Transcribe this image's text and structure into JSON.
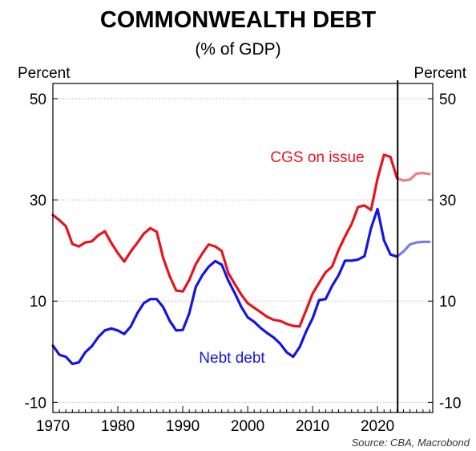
{
  "chart_data": {
    "type": "line",
    "title": "COMMONWEALTH DEBT",
    "subtitle": "(% of GDP)",
    "ylabel_left": "Percent",
    "ylabel_right": "Percent",
    "source": "Source: CBA, Macrobond",
    "xlim": [
      1970,
      2028.5
    ],
    "ylim": [
      -12,
      53
    ],
    "xticks": [
      1970,
      1980,
      1990,
      2000,
      2010,
      2020
    ],
    "xtick_labels": [
      "1970",
      "1980",
      "1990",
      "2000",
      "2010",
      "2020"
    ],
    "yticks": [
      -10,
      10,
      30,
      50
    ],
    "ytick_labels": [
      "-10",
      "10",
      "30",
      "50"
    ],
    "grid": true,
    "forecast_line_x": 2023.1,
    "series": [
      {
        "name": "CGS on issue",
        "color": "#e8141b",
        "forecast_color": "#f07d80",
        "x": [
          1970,
          1971,
          1972,
          1973,
          1974,
          1975,
          1976,
          1977,
          1978,
          1979,
          1980,
          1981,
          1982,
          1983,
          1984,
          1985,
          1986,
          1987,
          1988,
          1989,
          1990,
          1991,
          1992,
          1993,
          1994,
          1995,
          1996,
          1997,
          1998,
          1999,
          2000,
          2001,
          2002,
          2003,
          2004,
          2005,
          2006,
          2007,
          2008,
          2009,
          2010,
          2011,
          2012,
          2013,
          2014,
          2015,
          2016,
          2017,
          2018,
          2019,
          2020,
          2021,
          2022,
          2023
        ],
        "values": [
          27.0,
          26.0,
          24.8,
          21.3,
          20.8,
          21.6,
          21.8,
          23.0,
          23.8,
          21.5,
          19.5,
          17.8,
          19.8,
          21.5,
          23.3,
          24.4,
          23.7,
          18.5,
          14.9,
          12.1,
          11.9,
          14.2,
          17.3,
          19.4,
          21.2,
          20.8,
          19.9,
          15.6,
          13.4,
          11.3,
          9.6,
          8.7,
          7.8,
          6.9,
          6.3,
          6.1,
          5.5,
          5.1,
          5.0,
          8.2,
          11.5,
          13.6,
          15.7,
          16.8,
          20.1,
          22.8,
          25.2,
          28.6,
          28.9,
          28.0,
          34.2,
          38.9,
          38.5,
          34.3
        ],
        "forecast_x": [
          2023,
          2024,
          2025,
          2026,
          2027,
          2028
        ],
        "forecast_values": [
          34.3,
          33.8,
          34.0,
          35.2,
          35.3,
          35.1
        ]
      },
      {
        "name": "Nebt debt",
        "color": "#1414e6",
        "forecast_color": "#7a7cf0",
        "x": [
          1970,
          1971,
          1972,
          1973,
          1974,
          1975,
          1976,
          1977,
          1978,
          1979,
          1980,
          1981,
          1982,
          1983,
          1984,
          1985,
          1986,
          1987,
          1988,
          1989,
          1990,
          1991,
          1992,
          1993,
          1994,
          1995,
          1996,
          1997,
          1998,
          1999,
          2000,
          2001,
          2002,
          2003,
          2004,
          2005,
          2006,
          2007,
          2008,
          2009,
          2010,
          2011,
          2012,
          2013,
          2014,
          2015,
          2016,
          2017,
          2018,
          2019,
          2020,
          2021,
          2022,
          2023
        ],
        "values": [
          1.2,
          -0.6,
          -1.0,
          -2.4,
          -2.1,
          -0.1,
          1.1,
          2.9,
          4.2,
          4.6,
          4.2,
          3.5,
          5.0,
          7.6,
          9.6,
          10.4,
          10.4,
          8.8,
          6.1,
          4.2,
          4.3,
          7.6,
          12.8,
          15.1,
          16.8,
          17.9,
          17.2,
          14.1,
          11.6,
          8.9,
          6.8,
          5.9,
          4.7,
          3.7,
          2.8,
          1.6,
          -0.1,
          -1.0,
          0.9,
          4.0,
          6.6,
          10.2,
          10.4,
          13.0,
          15.1,
          18.0,
          18.0,
          18.2,
          18.9,
          24.4,
          28.2,
          22.0,
          19.2,
          18.8
        ],
        "forecast_x": [
          2023,
          2024,
          2025,
          2026,
          2027,
          2028
        ],
        "forecast_values": [
          18.8,
          19.8,
          21.2,
          21.6,
          21.7,
          21.7
        ]
      }
    ],
    "annotations": [
      {
        "text": "CGS on issue",
        "x": 2003.5,
        "y": 37.5,
        "color": "#e8141b"
      },
      {
        "text": "Nebt debt",
        "x": 1992.5,
        "y": -2.2,
        "color": "#1414e6"
      }
    ]
  }
}
